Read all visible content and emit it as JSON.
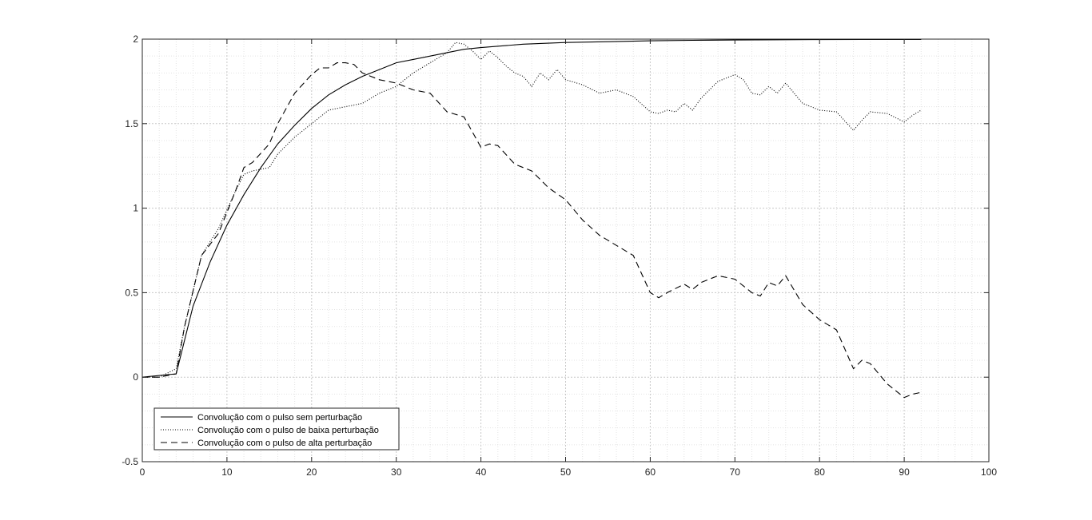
{
  "chart_data": {
    "type": "line",
    "title": "",
    "xlabel": "",
    "ylabel": "",
    "xlim": [
      0,
      100
    ],
    "ylim": [
      -0.5,
      2
    ],
    "xticks": [
      0,
      10,
      20,
      30,
      40,
      50,
      60,
      70,
      80,
      90,
      100
    ],
    "yticks": [
      -0.5,
      0,
      0.5,
      1,
      1.5,
      2
    ],
    "xtick_labels": [
      "0",
      "10",
      "20",
      "30",
      "40",
      "50",
      "60",
      "70",
      "80",
      "90",
      "100"
    ],
    "ytick_labels": [
      "-0.5",
      "0",
      "0.5",
      "1",
      "1.5",
      "2"
    ],
    "grid": true,
    "minor_grid": true,
    "legend_position": "bottom-left",
    "series": [
      {
        "name": "Convolução com o pulso sem perturbação",
        "style": "solid",
        "color": "#000000",
        "x": [
          0,
          4,
          6,
          8,
          10,
          12,
          14,
          16,
          18,
          20,
          22,
          24,
          26,
          28,
          30,
          32,
          34,
          36,
          38,
          40,
          45,
          50,
          55,
          60,
          65,
          70,
          75,
          80,
          85,
          90,
          92
        ],
        "y": [
          0,
          0.02,
          0.42,
          0.68,
          0.9,
          1.08,
          1.24,
          1.38,
          1.49,
          1.59,
          1.67,
          1.73,
          1.78,
          1.82,
          1.86,
          1.88,
          1.9,
          1.92,
          1.94,
          1.95,
          1.97,
          1.98,
          1.985,
          1.99,
          1.993,
          1.995,
          1.996,
          1.997,
          1.998,
          1.998,
          1.998
        ]
      },
      {
        "name": "Convolução com o pulso de baixa perturbação",
        "style": "dotted",
        "color": "#000000",
        "x": [
          0,
          2,
          4,
          5,
          7,
          9,
          11,
          12,
          13,
          15,
          16,
          18,
          20,
          22,
          24,
          26,
          28,
          30,
          32,
          34,
          36,
          37,
          38,
          39,
          40,
          41,
          42,
          43,
          44,
          45,
          46,
          47,
          48,
          49,
          50,
          52,
          54,
          56,
          58,
          60,
          61,
          62,
          63,
          64,
          65,
          66,
          68,
          70,
          71,
          72,
          73,
          74,
          75,
          76,
          78,
          80,
          82,
          84,
          85,
          86,
          88,
          90,
          91,
          92
        ],
        "y": [
          0,
          0,
          0.05,
          0.3,
          0.72,
          0.88,
          1.1,
          1.2,
          1.22,
          1.24,
          1.32,
          1.42,
          1.5,
          1.58,
          1.6,
          1.62,
          1.68,
          1.72,
          1.8,
          1.86,
          1.92,
          1.98,
          1.97,
          1.93,
          1.88,
          1.93,
          1.89,
          1.84,
          1.8,
          1.78,
          1.72,
          1.8,
          1.76,
          1.82,
          1.76,
          1.73,
          1.68,
          1.7,
          1.66,
          1.57,
          1.56,
          1.58,
          1.57,
          1.62,
          1.58,
          1.65,
          1.75,
          1.79,
          1.76,
          1.68,
          1.67,
          1.72,
          1.68,
          1.74,
          1.62,
          1.58,
          1.57,
          1.46,
          1.52,
          1.57,
          1.56,
          1.51,
          1.55,
          1.58
        ]
      },
      {
        "name": "Convolução com o pulso de alta perturbação",
        "style": "dashed",
        "color": "#000000",
        "x": [
          0,
          2,
          4,
          5,
          7,
          9,
          11,
          12,
          13,
          15,
          16,
          18,
          20,
          21,
          22,
          23,
          24,
          25,
          26,
          28,
          30,
          32,
          34,
          36,
          38,
          40,
          41,
          42,
          44,
          46,
          48,
          50,
          52,
          54,
          56,
          58,
          60,
          61,
          62,
          64,
          65,
          66,
          68,
          70,
          72,
          73,
          74,
          75,
          76,
          78,
          80,
          82,
          84,
          85,
          86,
          88,
          90,
          91,
          92
        ],
        "y": [
          0,
          0,
          0.02,
          0.3,
          0.72,
          0.85,
          1.1,
          1.24,
          1.27,
          1.38,
          1.5,
          1.68,
          1.79,
          1.83,
          1.83,
          1.86,
          1.86,
          1.85,
          1.8,
          1.76,
          1.74,
          1.7,
          1.68,
          1.57,
          1.54,
          1.36,
          1.38,
          1.37,
          1.26,
          1.22,
          1.12,
          1.05,
          0.93,
          0.84,
          0.78,
          0.72,
          0.5,
          0.47,
          0.5,
          0.55,
          0.52,
          0.56,
          0.6,
          0.58,
          0.5,
          0.48,
          0.56,
          0.54,
          0.6,
          0.43,
          0.34,
          0.28,
          0.05,
          0.1,
          0.08,
          -0.04,
          -0.12,
          -0.1,
          -0.09
        ]
      }
    ]
  }
}
